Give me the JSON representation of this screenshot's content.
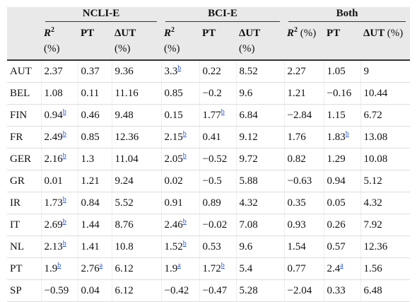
{
  "table": {
    "groups": [
      "NCLI-E",
      "BCI-E",
      "Both"
    ],
    "columns": [
      {
        "text": "R",
        "sup": "2",
        "unit": "(%)"
      },
      {
        "text": "PT"
      },
      {
        "text": "ΔUT",
        "unit": "(%)"
      },
      {
        "text": "R",
        "sup": "2",
        "unit": "(%)"
      },
      {
        "text": "PT"
      },
      {
        "text": "ΔUT",
        "unit": "(%)"
      },
      {
        "text": "R",
        "sup": "2",
        "unit": "(%)"
      },
      {
        "text": "PT"
      },
      {
        "text": "ΔUT",
        "unit": "(%)"
      }
    ],
    "rows": [
      {
        "label": "AUT",
        "cells": [
          "2.37",
          "0.37",
          "9.36",
          {
            "text": "3.3",
            "sup": "b"
          },
          "0.22",
          "8.52",
          "2.27",
          "1.05",
          "9"
        ]
      },
      {
        "label": "BEL",
        "cells": [
          "1.08",
          "0.11",
          "11.16",
          "0.85",
          "−0.2",
          "9.6",
          "1.21",
          "−0.16",
          "10.44"
        ]
      },
      {
        "label": "FIN",
        "cells": [
          {
            "text": "0.94",
            "sup": "b"
          },
          "0.46",
          "9.48",
          "0.15",
          {
            "text": "1.77",
            "sup": "b"
          },
          "6.84",
          "−2.84",
          "1.15",
          "6.72"
        ]
      },
      {
        "label": "FR",
        "cells": [
          {
            "text": "2.49",
            "sup": "b"
          },
          "0.85",
          "12.36",
          {
            "text": "2.15",
            "sup": "b"
          },
          "0.41",
          "9.12",
          "1.76",
          {
            "text": "1.83",
            "sup": "b"
          },
          "13.08"
        ]
      },
      {
        "label": "GER",
        "cells": [
          {
            "text": "2.16",
            "sup": "b"
          },
          "1.3",
          "11.04",
          {
            "text": "2.05",
            "sup": "b"
          },
          "−0.52",
          "9.72",
          "0.82",
          "1.29",
          "10.08"
        ]
      },
      {
        "label": "GR",
        "cells": [
          "0.01",
          "1.21",
          "9.24",
          "0.02",
          "−0.5",
          "5.88",
          "−0.63",
          "0.94",
          "5.12"
        ]
      },
      {
        "label": "IR",
        "cells": [
          {
            "text": "1.73",
            "sup": "b"
          },
          "0.84",
          "5.52",
          "0.91",
          "0.89",
          "4.32",
          "0.35",
          "0.05",
          "4.32"
        ]
      },
      {
        "label": "IT",
        "cells": [
          {
            "text": "2.69",
            "sup": "b"
          },
          "1.44",
          "8.76",
          {
            "text": "2.46",
            "sup": "b"
          },
          "−0.02",
          "7.08",
          "0.93",
          "0.26",
          "7.92"
        ]
      },
      {
        "label": "NL",
        "cells": [
          {
            "text": "2.13",
            "sup": "b"
          },
          "1.41",
          "10.8",
          {
            "text": "1.52",
            "sup": "b"
          },
          "0.53",
          "9.6",
          "1.54",
          "0.57",
          "12.36"
        ]
      },
      {
        "label": "PT",
        "cells": [
          {
            "text": "1.9",
            "sup": "b"
          },
          {
            "text": "2.76",
            "sup": "a"
          },
          "6.12",
          {
            "text": "1.9",
            "sup": "a"
          },
          {
            "text": "1.72",
            "sup": "b"
          },
          "5.4",
          "0.77",
          {
            "text": "2.4",
            "sup": "a"
          },
          "1.56"
        ]
      },
      {
        "label": "SP",
        "cells": [
          "−0.59",
          "0.04",
          "6.12",
          "−0.42",
          "−0.47",
          "5.28",
          "−2.04",
          "0.33",
          "6.48"
        ]
      }
    ]
  }
}
